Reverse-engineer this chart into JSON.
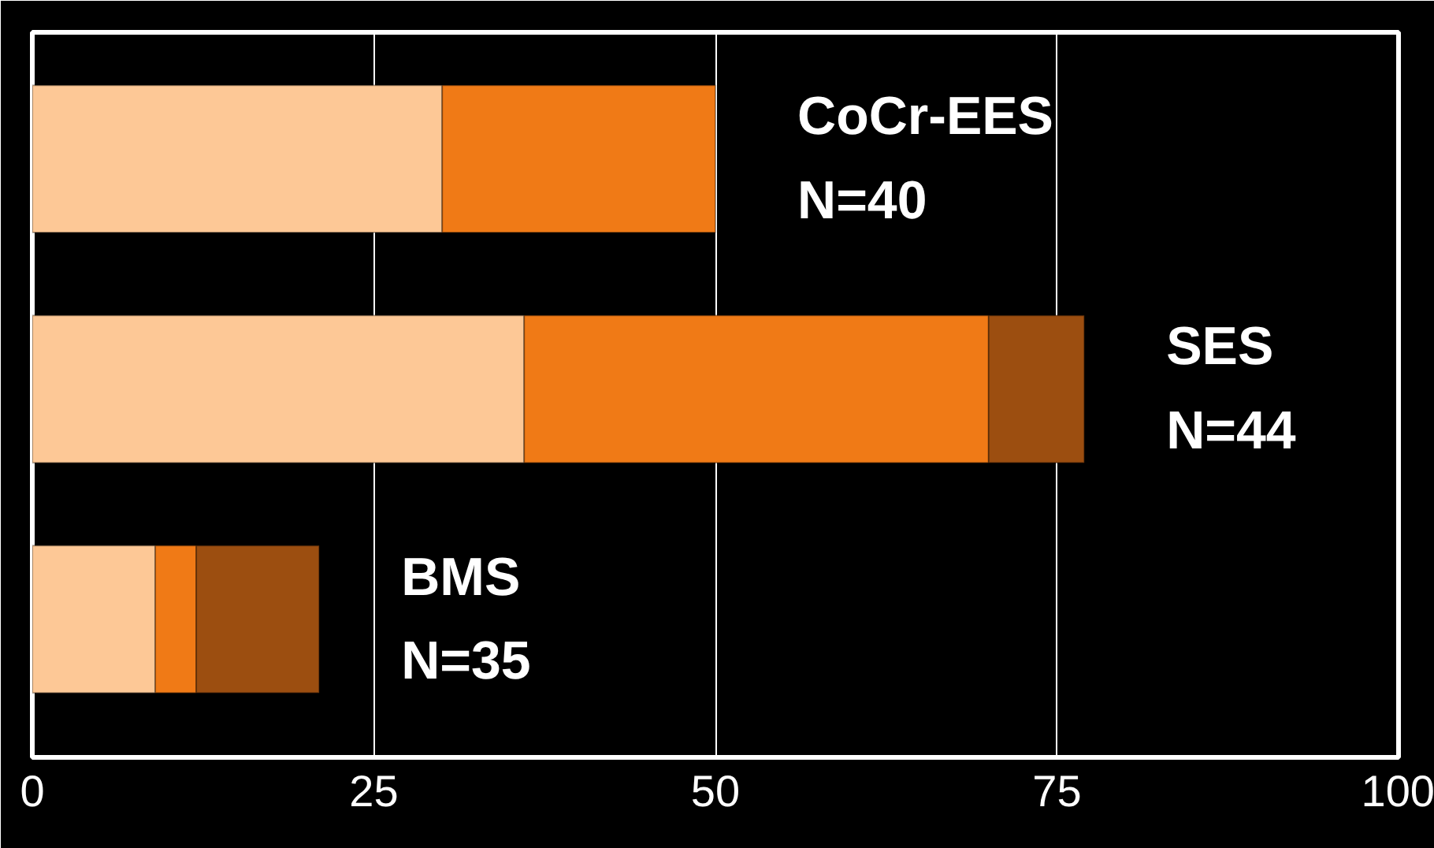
{
  "chart_data": {
    "type": "bar",
    "orientation": "horizontal",
    "stacked": true,
    "categories": [
      "CoCr-EES\nN=40",
      "SES\n N=44",
      "BMS\n N=35"
    ],
    "series": [
      {
        "color": "#fdc896",
        "values": [
          30,
          36,
          9
        ]
      },
      {
        "color": "#f07a16",
        "values": [
          20,
          34,
          3
        ]
      },
      {
        "color": "#9c4e10",
        "values": [
          null,
          7,
          9
        ]
      }
    ],
    "xlim": [
      0,
      100
    ],
    "xticks": [
      0,
      25,
      50,
      75,
      100
    ],
    "grid": "x"
  }
}
